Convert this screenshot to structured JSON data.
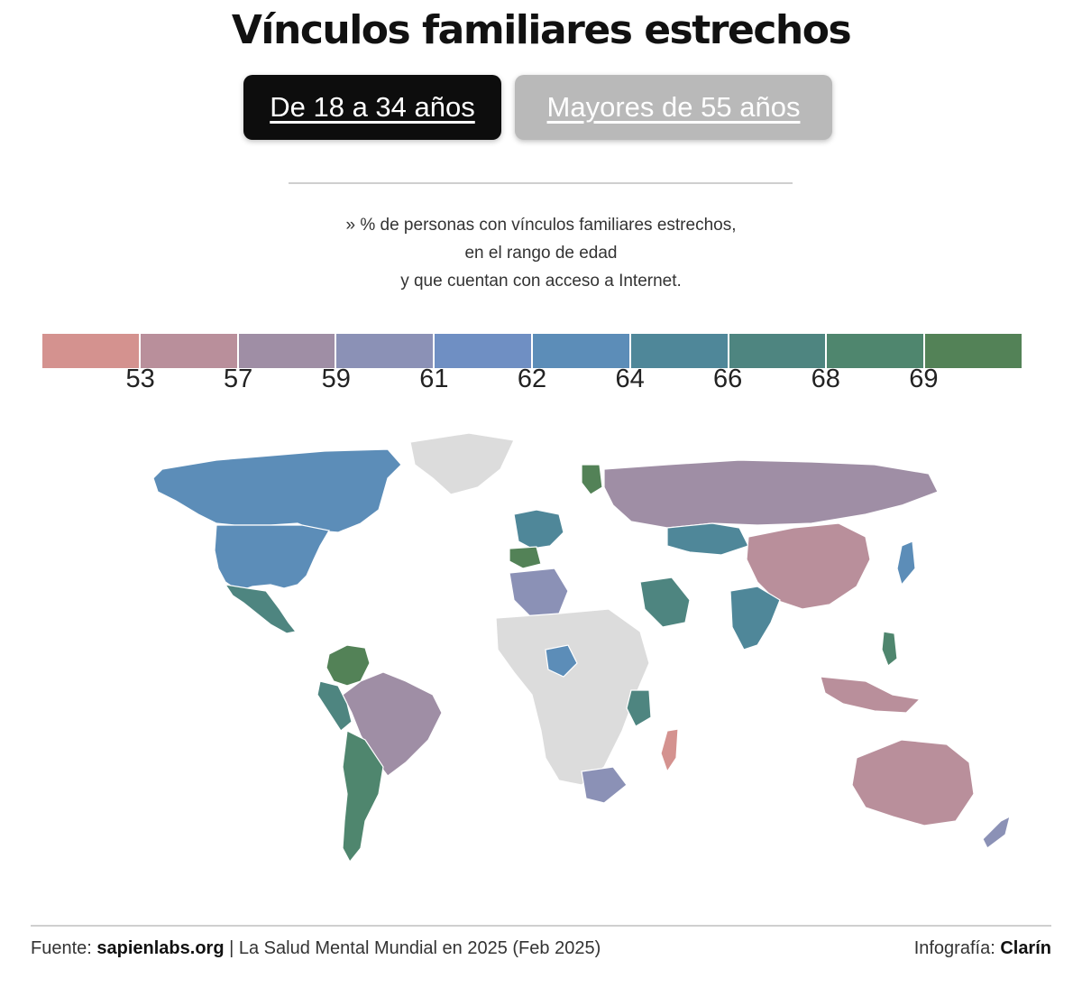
{
  "title": "Vínculos familiares estrechos",
  "tabs": [
    {
      "label": "De 18 a 34 años",
      "active": true
    },
    {
      "label": "Mayores de 55 años",
      "active": false
    }
  ],
  "subtitle": {
    "line1": "» % de personas con vínculos familiares estrechos,",
    "line2": "en el rango de edad",
    "line3": "y que cuentan con acceso a Internet."
  },
  "legend": {
    "colors": [
      "#d4928f",
      "#b98f9b",
      "#9f8ea5",
      "#8b91b6",
      "#6f8fc3",
      "#5c8db8",
      "#4f8799",
      "#4e8580",
      "#4f866e",
      "#538257"
    ],
    "thresholds": [
      "53",
      "57",
      "59",
      "61",
      "62",
      "64",
      "66",
      "68",
      "69"
    ]
  },
  "map": {
    "no_data_color": "#dcdcdc"
  },
  "footer": {
    "source_prefix": "Fuente: ",
    "source_site": "sapienlabs.org",
    "source_rest": " | La Salud Mental Mundial en 2025 (Feb 2025)",
    "credit_prefix": "Infografía: ",
    "credit_name": "Clarín"
  }
}
